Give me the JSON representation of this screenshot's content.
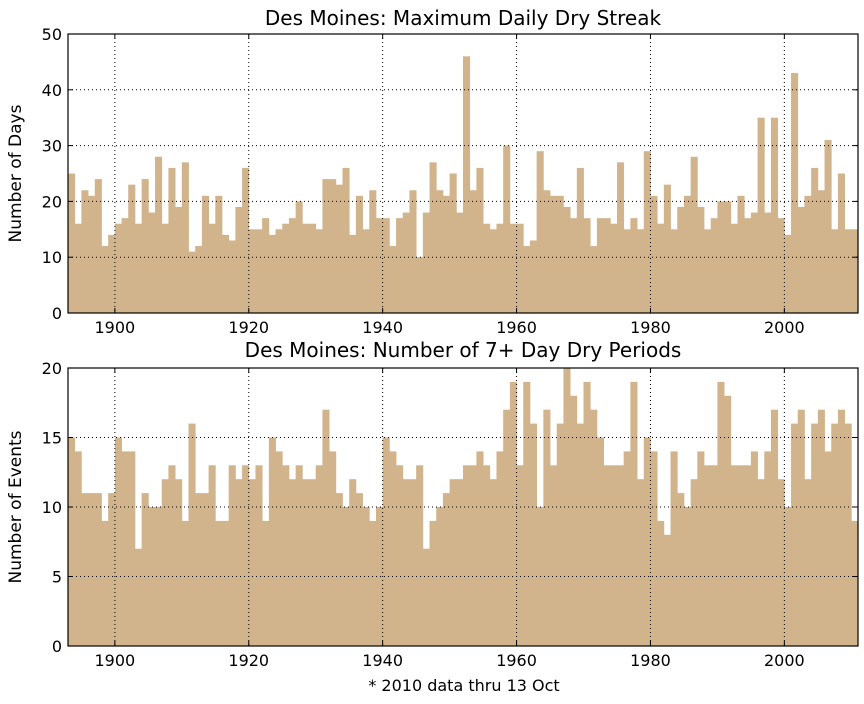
{
  "colors": {
    "bar": "#d2b48c",
    "axis": "#000000",
    "grid": "#000000",
    "background": "#ffffff"
  },
  "footnote": "* 2010 data thru 13 Oct",
  "chart_data": [
    {
      "type": "bar",
      "title": "Des Moines: Maximum Daily Dry Streak",
      "xlabel": "",
      "ylabel": "Number of Days",
      "xlim": [
        1893,
        2011
      ],
      "ylim": [
        0,
        50
      ],
      "xticks": [
        1900,
        1920,
        1940,
        1960,
        1980,
        2000
      ],
      "yticks": [
        0,
        10,
        20,
        30,
        40,
        50
      ],
      "grid": true,
      "x": [
        1893,
        1894,
        1895,
        1896,
        1897,
        1898,
        1899,
        1900,
        1901,
        1902,
        1903,
        1904,
        1905,
        1906,
        1907,
        1908,
        1909,
        1910,
        1911,
        1912,
        1913,
        1914,
        1915,
        1916,
        1917,
        1918,
        1919,
        1920,
        1921,
        1922,
        1923,
        1924,
        1925,
        1926,
        1927,
        1928,
        1929,
        1930,
        1931,
        1932,
        1933,
        1934,
        1935,
        1936,
        1937,
        1938,
        1939,
        1940,
        1941,
        1942,
        1943,
        1944,
        1945,
        1946,
        1947,
        1948,
        1949,
        1950,
        1951,
        1952,
        1953,
        1954,
        1955,
        1956,
        1957,
        1958,
        1959,
        1960,
        1961,
        1962,
        1963,
        1964,
        1965,
        1966,
        1967,
        1968,
        1969,
        1970,
        1971,
        1972,
        1973,
        1974,
        1975,
        1976,
        1977,
        1978,
        1979,
        1980,
        1981,
        1982,
        1983,
        1984,
        1985,
        1986,
        1987,
        1988,
        1989,
        1990,
        1991,
        1992,
        1993,
        1994,
        1995,
        1996,
        1997,
        1998,
        1999,
        2000,
        2001,
        2002,
        2003,
        2004,
        2005,
        2006,
        2007,
        2008,
        2009,
        2010
      ],
      "values": [
        25,
        16,
        22,
        21,
        24,
        12,
        14,
        16,
        17,
        23,
        16,
        24,
        18,
        28,
        16,
        26,
        19,
        27,
        11,
        12,
        21,
        16,
        21,
        14,
        13,
        19,
        26,
        15,
        15,
        17,
        14,
        15,
        16,
        17,
        20,
        16,
        16,
        15,
        24,
        24,
        23,
        26,
        14,
        21,
        15,
        22,
        17,
        17,
        12,
        17,
        18,
        22,
        10,
        18,
        27,
        22,
        21,
        25,
        18,
        46,
        22,
        26,
        16,
        15,
        16,
        30,
        16,
        16,
        12,
        13,
        29,
        22,
        21,
        21,
        19,
        17,
        26,
        17,
        12,
        17,
        17,
        16,
        27,
        15,
        17,
        15,
        29,
        21,
        16,
        23,
        15,
        19,
        21,
        28,
        19,
        15,
        17,
        20,
        20,
        16,
        21,
        17,
        18,
        35,
        18,
        35,
        17,
        14,
        43,
        19,
        21,
        26,
        22,
        31,
        15,
        25,
        15,
        15
      ]
    },
    {
      "type": "bar",
      "title": "Des Moines: Number of 7+ Day Dry Periods",
      "xlabel": "",
      "ylabel": "Number of Events",
      "xlim": [
        1893,
        2011
      ],
      "ylim": [
        0,
        20
      ],
      "xticks": [
        1900,
        1920,
        1940,
        1960,
        1980,
        2000
      ],
      "yticks": [
        0,
        5,
        10,
        15,
        20
      ],
      "grid": true,
      "x": [
        1893,
        1894,
        1895,
        1896,
        1897,
        1898,
        1899,
        1900,
        1901,
        1902,
        1903,
        1904,
        1905,
        1906,
        1907,
        1908,
        1909,
        1910,
        1911,
        1912,
        1913,
        1914,
        1915,
        1916,
        1917,
        1918,
        1919,
        1920,
        1921,
        1922,
        1923,
        1924,
        1925,
        1926,
        1927,
        1928,
        1929,
        1930,
        1931,
        1932,
        1933,
        1934,
        1935,
        1936,
        1937,
        1938,
        1939,
        1940,
        1941,
        1942,
        1943,
        1944,
        1945,
        1946,
        1947,
        1948,
        1949,
        1950,
        1951,
        1952,
        1953,
        1954,
        1955,
        1956,
        1957,
        1958,
        1959,
        1960,
        1961,
        1962,
        1963,
        1964,
        1965,
        1966,
        1967,
        1968,
        1969,
        1970,
        1971,
        1972,
        1973,
        1974,
        1975,
        1976,
        1977,
        1978,
        1979,
        1980,
        1981,
        1982,
        1983,
        1984,
        1985,
        1986,
        1987,
        1988,
        1989,
        1990,
        1991,
        1992,
        1993,
        1994,
        1995,
        1996,
        1997,
        1998,
        1999,
        2000,
        2001,
        2002,
        2003,
        2004,
        2005,
        2006,
        2007,
        2008,
        2009,
        2010
      ],
      "values": [
        15,
        14,
        11,
        11,
        11,
        9,
        11,
        15,
        14,
        14,
        7,
        11,
        10,
        10,
        12,
        13,
        12,
        9,
        16,
        11,
        11,
        13,
        9,
        9,
        13,
        12,
        13,
        12,
        13,
        9,
        15,
        14,
        13,
        12,
        13,
        12,
        12,
        13,
        17,
        14,
        11,
        10,
        12,
        11,
        10,
        9,
        10,
        15,
        14,
        13,
        12,
        12,
        13,
        7,
        9,
        10,
        11,
        12,
        12,
        13,
        13,
        14,
        13,
        12,
        14,
        17,
        19,
        13,
        19,
        16,
        10,
        17,
        13,
        16,
        20,
        18,
        16,
        19,
        17,
        15,
        13,
        13,
        13,
        14,
        19,
        12,
        15,
        14,
        9,
        8,
        14,
        11,
        10,
        12,
        14,
        13,
        13,
        19,
        18,
        13,
        13,
        13,
        14,
        12,
        14,
        17,
        12,
        10,
        16,
        17,
        12,
        16,
        17,
        14,
        16,
        17,
        16,
        9
      ]
    }
  ]
}
